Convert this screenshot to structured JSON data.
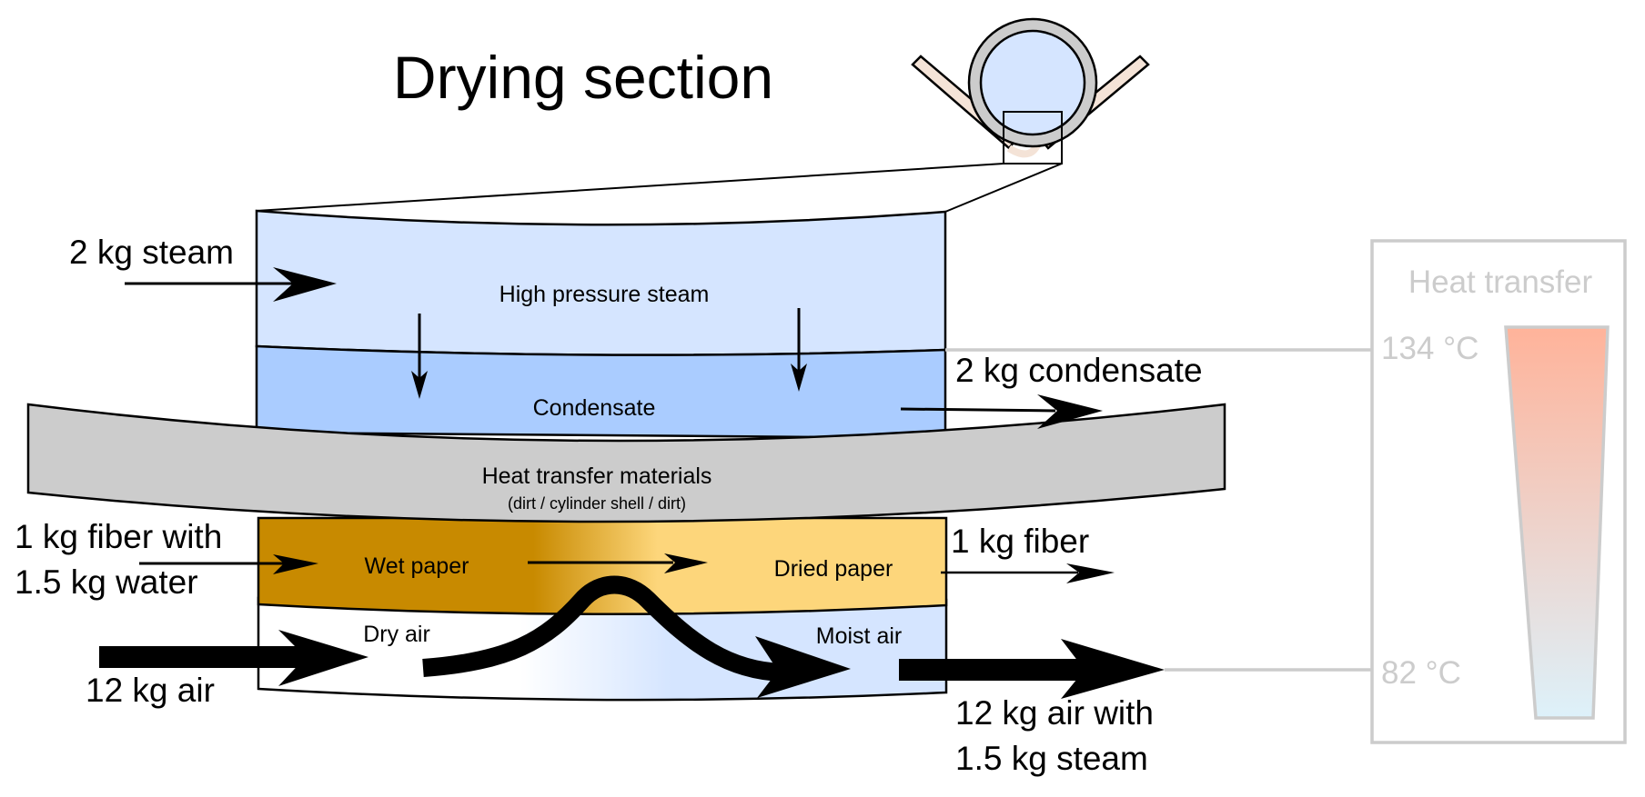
{
  "title": "Drying section",
  "layers": {
    "steam": "High pressure steam",
    "condensate": "Condensate",
    "heat_materials": "Heat transfer materials",
    "heat_materials_sub": "(dirt / cylinder shell / dirt)",
    "wet_paper": "Wet paper",
    "dried_paper": "Dried paper",
    "dry_air": "Dry air",
    "moist_air": "Moist air"
  },
  "flows": {
    "steam_in": "2 kg steam",
    "condensate_out": "2 kg condensate",
    "fiber_in_line1": "1 kg fiber with",
    "fiber_in_line2": "1.5 kg water",
    "fiber_out": "1 kg fiber",
    "air_in": "12 kg air",
    "air_out_line1": "12 kg air with",
    "air_out_line2": "1.5 kg steam"
  },
  "heat_panel": {
    "title": "Heat transfer",
    "temp_high": "134 °C",
    "temp_low": "82 °C"
  },
  "colors": {
    "steam_fill": "#d5e5ff",
    "condensate_fill": "#aaccff",
    "heat_material_fill": "#cccccc",
    "wet_paper_fill": "#c88a00",
    "dried_paper_fill": "#fdd67b",
    "moist_air_fill": "#d5e5ff",
    "panel_gray": "#cccccc",
    "gauge_hot": "#ffb39a",
    "gauge_cold": "#ddf1fa",
    "belt_fill": "#f4e3d7"
  }
}
